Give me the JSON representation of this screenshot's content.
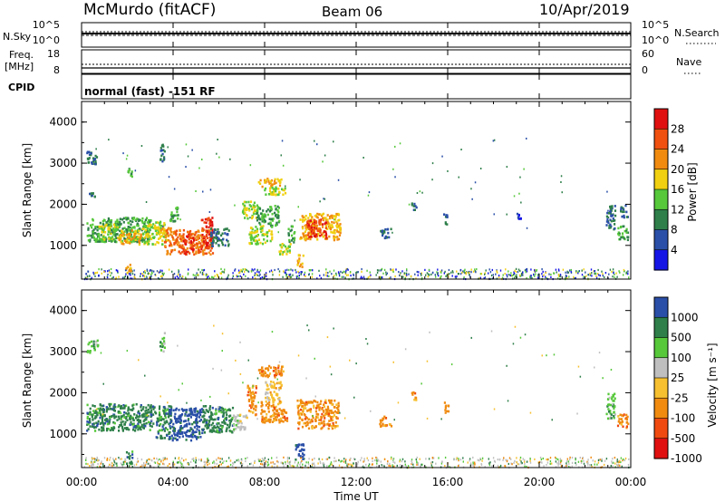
{
  "header": {
    "station": "McMurdo (fitACF)",
    "beam": "Beam 06",
    "date": "10/Apr/2019"
  },
  "top_panels": {
    "nsky": {
      "label": "N.Sky",
      "ticks_left": [
        "10^5",
        "10^0"
      ],
      "ticks_right": [
        "10^5",
        "10^0"
      ],
      "right_label": "N.Search"
    },
    "freq": {
      "label_line1": "Freq.",
      "label_line2": "[MHz]",
      "ticks_left": [
        "18",
        "8"
      ],
      "ticks_right": [
        "60",
        "0"
      ],
      "right_label": "Nave"
    },
    "cpid": {
      "label": "CPID",
      "text": "normal (fast) -151 RF"
    }
  },
  "colors": {
    "power": [
      "#1515e6",
      "#2a4fa8",
      "#2e7f4a",
      "#56c83a",
      "#f0d010",
      "#f08b10",
      "#f05010",
      "#e01010"
    ],
    "velocity": [
      "#e01010",
      "#f04a10",
      "#f08b10",
      "#f6c030",
      "#bfbfbf",
      "#56c83a",
      "#2e7f4a",
      "#2a4fa8"
    ]
  },
  "chart_data": [
    {
      "type": "heatmap",
      "quantity": "power",
      "ylabel": "Slant Range [km]",
      "yticks": [
        "1000",
        "2000",
        "3000",
        "4000"
      ],
      "ylim": [
        180,
        4500
      ],
      "xlim": [
        0,
        24
      ],
      "colorbar_label": "Power [dB]",
      "colorbar_ticks": [
        "4",
        "8",
        "12",
        "16",
        "20",
        "24",
        "28"
      ],
      "clim": [
        0,
        32
      ],
      "regions": [
        {
          "t0": 0.2,
          "t1": 0.7,
          "r0": 3000,
          "r1": 3300,
          "v": 8
        },
        {
          "t0": 0.3,
          "t1": 0.55,
          "r0": 2200,
          "r1": 2300,
          "v": 8
        },
        {
          "t0": 0.2,
          "t1": 3.0,
          "r0": 1100,
          "r1": 1700,
          "v": 12
        },
        {
          "t0": 0.7,
          "t1": 1.6,
          "r0": 1150,
          "r1": 1550,
          "v": 16
        },
        {
          "t0": 1.6,
          "t1": 2.6,
          "r0": 1050,
          "r1": 1400,
          "v": 20
        },
        {
          "t0": 2.6,
          "t1": 3.7,
          "r0": 1050,
          "r1": 1600,
          "v": 16
        },
        {
          "t0": 3.2,
          "t1": 3.9,
          "r0": 1300,
          "r1": 1450,
          "v": 20
        },
        {
          "t0": 3.6,
          "t1": 5.7,
          "r0": 800,
          "r1": 1400,
          "v": 24
        },
        {
          "t0": 4.4,
          "t1": 4.9,
          "r0": 800,
          "r1": 1300,
          "v": 28
        },
        {
          "t0": 5.2,
          "t1": 5.7,
          "r0": 900,
          "r1": 1700,
          "v": 28
        },
        {
          "t0": 5.6,
          "t1": 6.4,
          "r0": 1000,
          "r1": 1450,
          "v": 8
        },
        {
          "t0": 3.8,
          "t1": 4.2,
          "r0": 1600,
          "r1": 1950,
          "v": 12
        },
        {
          "t0": 3.4,
          "t1": 3.6,
          "r0": 3000,
          "r1": 3500,
          "v": 8
        },
        {
          "t0": 2.0,
          "t1": 2.2,
          "r0": 2600,
          "r1": 2900,
          "v": 12
        },
        {
          "t0": 1.9,
          "t1": 2.2,
          "r0": 350,
          "r1": 600,
          "v": 20
        },
        {
          "t0": 7.0,
          "t1": 7.6,
          "r0": 1650,
          "r1": 2100,
          "v": 16
        },
        {
          "t0": 7.6,
          "t1": 8.6,
          "r0": 1500,
          "r1": 2000,
          "v": 12
        },
        {
          "t0": 7.3,
          "t1": 8.3,
          "r0": 1050,
          "r1": 1500,
          "v": 16
        },
        {
          "t0": 7.7,
          "t1": 8.7,
          "r0": 2450,
          "r1": 2650,
          "v": 20
        },
        {
          "t0": 7.9,
          "t1": 8.9,
          "r0": 2250,
          "r1": 2450,
          "v": 16
        },
        {
          "t0": 8.6,
          "t1": 9.1,
          "r0": 800,
          "r1": 1100,
          "v": 16
        },
        {
          "t0": 9.0,
          "t1": 9.3,
          "r0": 1100,
          "r1": 1500,
          "v": 12
        },
        {
          "t0": 9.5,
          "t1": 11.3,
          "r0": 1150,
          "r1": 1800,
          "v": 20
        },
        {
          "t0": 9.8,
          "t1": 10.7,
          "r0": 1200,
          "r1": 1650,
          "v": 28
        },
        {
          "t0": 9.4,
          "t1": 9.7,
          "r0": 500,
          "r1": 800,
          "v": 20
        },
        {
          "t0": 13.0,
          "t1": 13.5,
          "r0": 1200,
          "r1": 1450,
          "v": 8
        },
        {
          "t0": 14.4,
          "t1": 14.6,
          "r0": 1850,
          "r1": 2050,
          "v": 8
        },
        {
          "t0": 15.8,
          "t1": 16.0,
          "r0": 1500,
          "r1": 1800,
          "v": 8
        },
        {
          "t0": 19.0,
          "t1": 19.2,
          "r0": 1650,
          "r1": 1800,
          "v": 4
        },
        {
          "t0": 22.9,
          "t1": 23.3,
          "r0": 1400,
          "r1": 2000,
          "v": 8
        },
        {
          "t0": 23.4,
          "t1": 23.85,
          "r0": 1150,
          "r1": 1500,
          "v": 12
        },
        {
          "t0": 23.5,
          "t1": 23.85,
          "r0": 1700,
          "r1": 2000,
          "v": 8
        }
      ]
    },
    {
      "type": "heatmap",
      "quantity": "velocity",
      "ylabel": "Slant Range [km]",
      "yticks": [
        "1000",
        "2000",
        "3000",
        "4000"
      ],
      "ylim": [
        180,
        4500
      ],
      "xlim": [
        0,
        24
      ],
      "colorbar_label": "Velocity [m s⁻¹]",
      "colorbar_ticks": [
        "1000",
        "500",
        "100",
        "25",
        "-25",
        "-100",
        "-500",
        "-1000"
      ],
      "regions": [
        {
          "t0": 0.2,
          "t1": 0.7,
          "r0": 3000,
          "r1": 3300,
          "v": 5
        },
        {
          "t0": 0.2,
          "t1": 3.2,
          "r0": 1100,
          "r1": 1750,
          "v": 6
        },
        {
          "t0": 3.2,
          "t1": 3.9,
          "r0": 900,
          "r1": 1700,
          "v": 6
        },
        {
          "t0": 3.8,
          "t1": 5.2,
          "r0": 850,
          "r1": 1650,
          "v": 7
        },
        {
          "t0": 5.2,
          "t1": 6.6,
          "r0": 1050,
          "r1": 1700,
          "v": 6
        },
        {
          "t0": 6.6,
          "t1": 7.2,
          "r0": 1100,
          "r1": 1500,
          "v": 4
        },
        {
          "t0": 3.4,
          "t1": 3.6,
          "r0": 3000,
          "r1": 3500,
          "v": 5
        },
        {
          "t0": 1.9,
          "t1": 2.2,
          "r0": 300,
          "r1": 600,
          "v": 6
        },
        {
          "t0": 7.2,
          "t1": 7.6,
          "r0": 1450,
          "r1": 2200,
          "v": 2
        },
        {
          "t0": 7.7,
          "t1": 8.8,
          "r0": 2400,
          "r1": 2700,
          "v": 2
        },
        {
          "t0": 7.8,
          "t1": 9.0,
          "r0": 1300,
          "r1": 1800,
          "v": 2
        },
        {
          "t0": 8.0,
          "t1": 8.7,
          "r0": 1800,
          "r1": 2300,
          "v": 3
        },
        {
          "t0": 9.4,
          "t1": 11.2,
          "r0": 1150,
          "r1": 1850,
          "v": 2
        },
        {
          "t0": 9.3,
          "t1": 9.7,
          "r0": 400,
          "r1": 800,
          "v": 7
        },
        {
          "t0": 13.0,
          "t1": 13.5,
          "r0": 1200,
          "r1": 1450,
          "v": 2
        },
        {
          "t0": 14.4,
          "t1": 14.6,
          "r0": 1850,
          "r1": 2050,
          "v": 2
        },
        {
          "t0": 15.8,
          "t1": 16.0,
          "r0": 1500,
          "r1": 1800,
          "v": 2
        },
        {
          "t0": 22.9,
          "t1": 23.3,
          "r0": 1400,
          "r1": 2000,
          "v": 5
        },
        {
          "t0": 23.4,
          "t1": 23.85,
          "r0": 1150,
          "r1": 1500,
          "v": 2
        }
      ]
    }
  ],
  "xaxis": {
    "ticks": [
      "00:00",
      "04:00",
      "08:00",
      "12:00",
      "16:00",
      "20:00",
      "00:00"
    ],
    "label": "Time UT"
  }
}
